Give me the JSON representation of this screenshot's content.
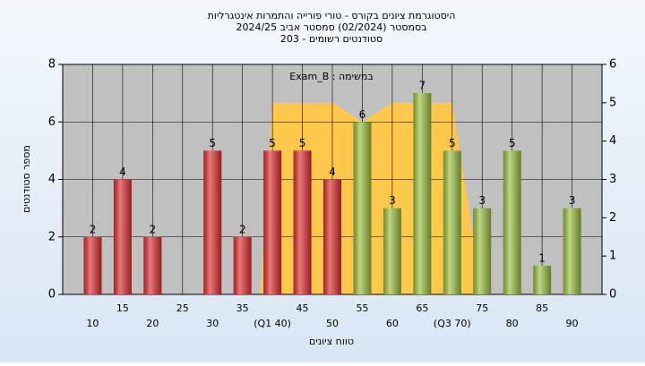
{
  "chart_data": {
    "type": "bar",
    "title": [
      "היסטוגרמת ציונים בקורס - טורי פורייה והתמרות אינטגרליות",
      "בסמסטר  (02/2024)  סמסטר אביב 2024/25",
      "סטודנטים רשומים - 203"
    ],
    "xlabel": "טווח ציונים",
    "ylabel": "מספר סטודנטים",
    "x": [
      10,
      15,
      20,
      25,
      30,
      35,
      40,
      45,
      50,
      55,
      60,
      65,
      70,
      75,
      80,
      85,
      90
    ],
    "xlim": [
      5,
      95
    ],
    "xticks": [
      10,
      15,
      20,
      25,
      30,
      35,
      {
        "value": 40,
        "label": "(Q1 40)"
      },
      45,
      50,
      55,
      60,
      65,
      {
        "value": 70,
        "label": "(Q3 70)"
      },
      75,
      80,
      85,
      90
    ],
    "ylim": [
      0,
      8
    ],
    "yticks": [
      0,
      2,
      4,
      6,
      8
    ],
    "y2lim": [
      0,
      6
    ],
    "y2ticks": [
      0,
      1,
      2,
      3,
      4,
      5,
      6
    ],
    "grid": true,
    "series": [
      {
        "name": "Exam_B : במשימה",
        "values": [
          2,
          4,
          2,
          null,
          5,
          2,
          5,
          5,
          4,
          6,
          3,
          7,
          5,
          3,
          5,
          1,
          3
        ],
        "colors": [
          "#e03030",
          "#e03030",
          "#e03030",
          "#e03030",
          "#e03030",
          "#e03030",
          "#e03030",
          "#e03030",
          "#e03030",
          "#9cc040",
          "#9cc040",
          "#9cc040",
          "#9cc040",
          "#9cc040",
          "#9cc040",
          "#9cc040",
          "#9cc040"
        ]
      },
      {
        "type": "area",
        "axis": "y2",
        "color": "#ffc84a",
        "x": [
          38,
          40,
          50,
          55,
          60,
          70,
          75
        ],
        "values": [
          0,
          5,
          5,
          4.5,
          5,
          5,
          0
        ]
      }
    ]
  }
}
